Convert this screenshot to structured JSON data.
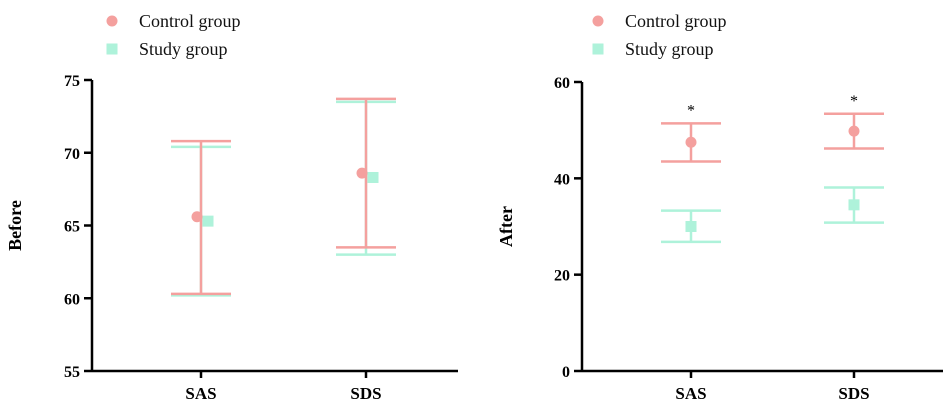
{
  "colors": {
    "control": "#F4A09E",
    "study": "#AEF2DA",
    "axis": "#000000"
  },
  "chart_data": [
    {
      "type": "scatter",
      "title": "",
      "xlabel": "",
      "ylabel": "Before",
      "categories": [
        "SAS",
        "SDS"
      ],
      "ylim": [
        55,
        75
      ],
      "yticks": [
        55,
        60,
        65,
        70,
        75
      ],
      "legend_position": "top-left",
      "series": [
        {
          "name": "Control group",
          "marker": "circle",
          "color_key": "control",
          "values": [
            65.6,
            68.6
          ],
          "err_low": [
            60.3,
            63.5
          ],
          "err_high": [
            70.8,
            73.7
          ]
        },
        {
          "name": "Study group",
          "marker": "square",
          "color_key": "study",
          "values": [
            65.3,
            68.3
          ],
          "err_low": [
            60.2,
            63.0
          ],
          "err_high": [
            70.4,
            73.5
          ]
        }
      ],
      "annotations": []
    },
    {
      "type": "scatter",
      "title": "",
      "xlabel": "",
      "ylabel": "After",
      "categories": [
        "SAS",
        "SDS"
      ],
      "ylim": [
        0,
        60
      ],
      "yticks": [
        0,
        20,
        40,
        60
      ],
      "legend_position": "top-left",
      "series": [
        {
          "name": "Control group",
          "marker": "circle",
          "color_key": "control",
          "values": [
            47.5,
            49.8
          ],
          "err_low": [
            43.5,
            46.2
          ],
          "err_high": [
            51.4,
            53.4
          ]
        },
        {
          "name": "Study group",
          "marker": "square",
          "color_key": "study",
          "values": [
            30.0,
            34.5
          ],
          "err_low": [
            26.8,
            30.8
          ],
          "err_high": [
            33.3,
            38.1
          ]
        }
      ],
      "annotations": [
        {
          "category": "SAS",
          "text": "*"
        },
        {
          "category": "SDS",
          "text": "*"
        }
      ]
    }
  ]
}
